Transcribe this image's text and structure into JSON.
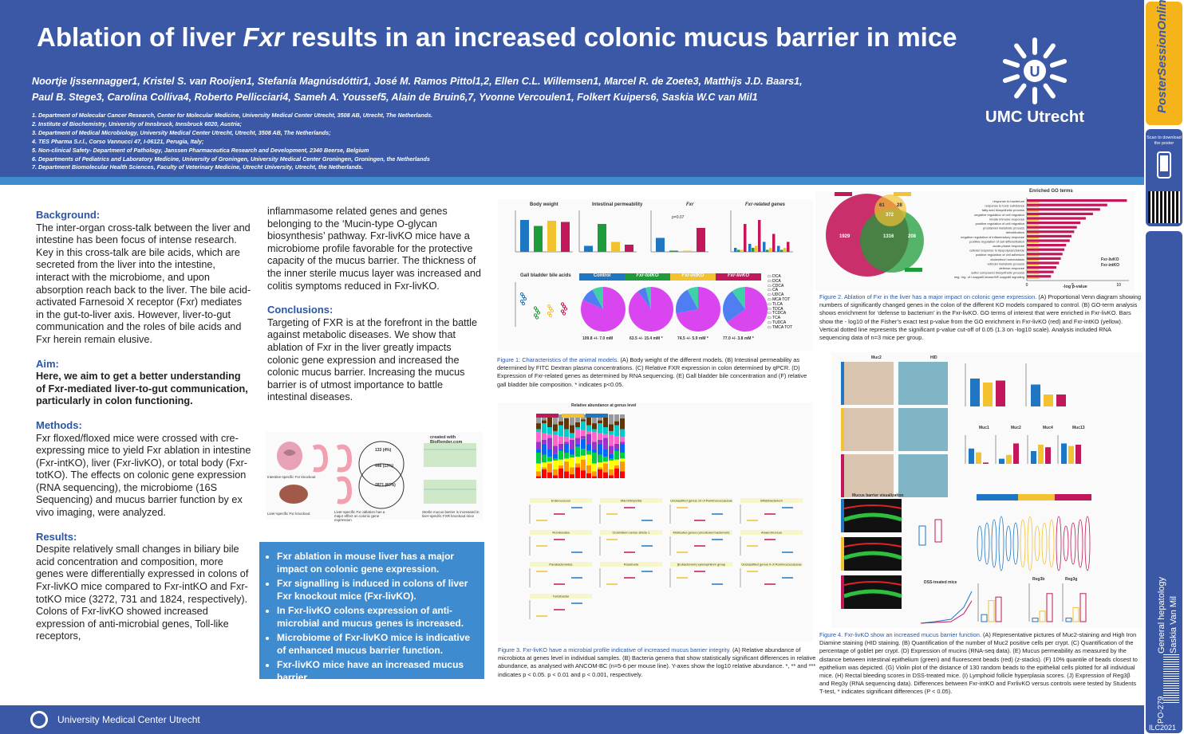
{
  "header": {
    "title_plain_1": "Ablation of liver ",
    "title_italic": "Fxr",
    "title_plain_2": " results in an increased colonic mucus barrier in mice",
    "authors_line1": "Noortje Ijssennagger1, Kristel S. van Rooijen1, Stefanía Magnúsdóttir1, José M. Ramos Pittol1,2, Ellen C.L. Willemsen1, Marcel R. de Zoete3, Matthijs J.D. Baars1,",
    "authors_line2": "Paul B. Stege3, Carolina Colliva4, Roberto Pellicciari4, Sameh A. Youssef5,  Alain de Bruin6,7, Yvonne Vercoulen1, Folkert Kuipers6, Saskia W.C van Mil1",
    "affiliations": [
      "1. Department of Molecular Cancer Research, Center for Molecular Medicine, University Medical Center Utrecht, 3508 AB, Utrecht, The Netherlands.",
      "2. Institute of Biochemistry, University of Innsbruck, Innsbruck 6020, Austria;",
      "3. Department of Medical Microbiology, University Medical Center Utrecht, Utrecht, 3508 AB, The Netherlands;",
      "4. TES Pharma S.r.l., Corso Vannucci 47, I-06121, Perugia, Italy;",
      "5. Non-clinical Safety- Department of Pathology, Janssen Pharmaceutica Research and Development,  2340 Beerse, Belgium",
      "6. Departments of Pediatrics and Laboratory Medicine, University of Groningen, University Medical Center Groningen, Groningen, the Netherlands",
      "7. Department Biomolecular Health Sciences, Faculty of Veterinary Medicine, Utrecht University, Utrecht, the Netherlands."
    ],
    "logo_text": "UMC Utrecht"
  },
  "sidebar": {
    "brand": "PosterSessionOnline",
    "scan_text": "Scan to download the poster",
    "topic": "General hepatology",
    "presenter": "Saskia Van Mil",
    "poster_id": "PO-279",
    "event": "ILC2021"
  },
  "background": {
    "heading": "Background:",
    "text": "The inter-organ cross-talk between the liver and intestine has been focus of intense research. Key in this cross-talk are bile acids, which are secreted from the liver into the intestine, interact with the microbiome, and upon absorption reach back to the liver. The bile acid-activated Farnesoid X receptor (Fxr) mediates in the gut-to-liver axis. However, liver-to-gut communication and the roles of bile acids and Fxr herein remain elusive."
  },
  "aim": {
    "heading": "Aim:",
    "text": "Here, we aim to get a better understanding of Fxr-mediated liver-to-gut communication, particularly in colon functioning."
  },
  "methods": {
    "heading": "Methods:",
    "text": "Fxr floxed/floxed mice were crossed with cre-expressing mice to yield Fxr ablation in intestine (Fxr-intKO), liver (Fxr-livKO), or total body (Fxr-totKO). The effects on colonic gene expression (RNA sequencing), the microbiome (16S Sequencing) and mucus barrier function by ex vivo imaging, were analyzed."
  },
  "results": {
    "heading": "Results:",
    "text": "Despite relatively small changes in biliary bile acid concentration and composition, more genes were differentially expressed in colons of Fxr-livKO mice compared to Fxr-intKO and Fxr-totKO mice (3272, 731 and 1824, respectively). Colons of Fxr-livKO showed increased expression of anti-microbial genes, Toll-like receptors,",
    "continued": "inflammasome related genes and genes belonging to the ‘Mucin-type O-glycan biosynthesis’ pathway. Fxr-livKO mice have a microbiome profile favorable for the protective capacity of the mucus barrier. The thickness of the inner sterile mucus layer was increased and colitis symptoms reduced in Fxr-livKO."
  },
  "conclusions": {
    "heading": "Conclusions:",
    "text": "Targeting of FXR is at the forefront in the battle against metabolic diseases. We show that ablation of Fxr in the liver greatly impacts colonic gene expression and increased the colonic mucus barrier. Increasing the mucus barrier is of utmost importance to battle intestinal diseases."
  },
  "highlights": [
    "Fxr ablation in mouse liver has a major impact on colonic gene expression.",
    "Fxr signalling is induced in colons of liver Fxr knockout mice (Fxr-livKO).",
    "In Fxr-livKO colons expression of anti-microbial and mucus genes is increased.",
    "Microbiome of Fxr-livKO mice is indicative of enhanced mucus barrier function.",
    "Fxr-livKO mice have an increased mucus barrier."
  ],
  "diagram": {
    "credit": "created with BioRender.com",
    "label_intestine": "Intestine-specific Fxr knockout",
    "label_liver": "Liver-specific Fxr knockout",
    "label_effect": "Liver-specific Fxr ablation has a major effect on colonic gene expression",
    "label_mucus": "Sterile mucus barrier is increased in liver-specific FXR knockout mice",
    "venn": [
      "133 (4%)",
      "446 (13%)",
      "2871 (83%)"
    ]
  },
  "fig1": {
    "caption_label": "Figure 1:",
    "caption_blue": " Characteristics of the animal models.",
    "caption_text": " (A) Body weight of the different models. (B) Intestinal permeability as determined by FITC Dextran plasma concentrations. (C) Relative FXR expression in colon determined by qPCR. (D) Expression of Fxr-related  genes as determined by RNA sequencing. (E) Gall bladder bile concentration and (F) relative gall  bladder bile composition. * indicates p<0.05.",
    "panel_titles": [
      "Body weight",
      "Intestinal permeability",
      "Fxr",
      "Fxr-related genes",
      "Gall bladder bile acids"
    ],
    "groups": [
      "Control",
      "Fxr-totKO",
      "Fxr-intKO",
      "Fxr-livKO"
    ],
    "pie_totals": [
      "109.8 +/- 7.0 mM",
      "63.5 +/- 15.4 mM *",
      "74.5 +/- 5.9 mM *",
      "77.0 +/- 3.8  mM *"
    ],
    "pvalue": "p=0.07",
    "bile_acids": [
      "DCA",
      "DCA",
      "CDCA",
      "CA",
      "UDCA",
      "MCA TOT",
      "TLCA",
      "TDCA",
      "TCDCA",
      "TCA",
      "TUDCA",
      "TMCA TOT"
    ]
  },
  "fig2": {
    "caption_label": "Figure 2.",
    "caption_blue": " Ablation of Fxr in the liver has a major impact on colonic gene expression.",
    "caption_text": " (A) Proportional Venn diagram showing numbers of significantly changed genes in the colon of the different KO models compared to control. (B) GO-term analysis shows enrichment for ‘defense to bacterium’ in the Fxr-livKO. GO terms of interest that were enriched in Fxr-livKO. Bars show the - log10 of the Fisher’s exact test p-value from the GO enrichment in Fxr-livKO (red) and Fxr-intKO (yellow). Vertical dotted line represents the significant p-value cut-off of 0.05 (1.3 on -log10 scale). Analysis included RNA sequencing data of n=3 mice per group.",
    "venn_values": [
      "1929",
      "1316",
      "208",
      "372",
      "61",
      "28"
    ],
    "go_title": "Enriched GO terms",
    "go_terms": [
      "response to bacterium",
      "response to toxic substance",
      "fatty acid biosynthetic process",
      "negative regulation of cell migration",
      "innate immune response",
      "positive regulation of cell migration",
      "prostanoid metabolic process",
      "detoxification",
      "negative regulation of inflammatory response",
      "positive regulation of cell differentiation",
      "acute-phase response",
      "cellular response to lipopolysaccharide",
      "positive regulation of cell adhesion",
      "cholesterol homeostasis",
      "retinoid metabolic process",
      "defense response",
      "sulfur compound biosynthetic process",
      "neg. reg. of I-kappaB kinase/NF-kappaB signaling"
    ],
    "go_values_liv": [
      11.2,
      9.0,
      8.2,
      7.4,
      6.6,
      6.0,
      5.6,
      5.3,
      5.0,
      4.8,
      4.4,
      4.2,
      4.0,
      3.8,
      3.6,
      3.3,
      3.0,
      2.7
    ],
    "go_xlabel": "-log p-value",
    "go_ticks": [
      "0",
      "5",
      "10"
    ],
    "legend": [
      "Fxr-livKO",
      "Fxr-intKO"
    ]
  },
  "fig3": {
    "caption_label": "Figure 3.",
    "caption_blue": " Fxr-livKO have a microbial profile indicative of increased mucus barrier integrity.",
    "caption_text": " (A) Relative abundance of microbiota at genes level in individual samples. (B) Bacteria genera that show statistically significant differences in relative abundance, as analysed with ANCOM-BC (n=5-6 per mouse line). Y-axes show the log10 relative abundance. *, ** and *** indicates p < 0.05. p < 0.01 and p < 0.001, respectively.",
    "title_A": "Relative abundance at genus level",
    "genera": [
      "Enterococcus",
      "Marvinbryantia",
      "Unclassified genus 10 of Ruminococcaceae",
      "Bifidobacterium",
      "Romboutsia",
      "Clostridium sensu stricto 1",
      "Mollicutes genus (uncultured bacterium)",
      "Anaerotruncus",
      "Parabacteroides",
      "Roseburia",
      "[Eubacterium] xylanophilum group",
      "Unclassified genus 9 of Ruminococcaceae",
      "Turicibacter"
    ]
  },
  "fig4": {
    "caption_label": "Figure 4.",
    "caption_blue": " Fxr-livKO show an increased mucus barrier function.",
    "caption_text": " (A) Representative pictures of Muc2-staining and High Iron Diamine staining (HID staining. (B) Quantification of the number of Muc2 positive cells per crypt. (C) Quantification of the percentage of goblet per crypt. (D) Expression of mucins (RNA-seq data). (E) Mucus permeability as measured by the distance between intestinal epithelium (green) and fluorescent beads (red) (z-stacks). (F) 10% quantile of beads closest to epithelium was depicted. (G) Violin plot of the distance of 130 random beads to the epithelial cells plotted for all individual mice. (H) Rectal bleeding scores in DSS-treated mice. (I) Lymphoid follicle hyperplasia scores. (J) Expression of Reg3β and Reg3γ (RNA sequencing data). Differences between Fxr-intKO and FxrlivKO versus controls were tested by Students T-test, * indicates significant differences (P < 0.05).",
    "panel_titles": [
      "Muc2",
      "HID",
      "Mucus barrier visualization",
      "DSS-treated mice",
      "Muc1",
      "Muc2",
      "Muc4",
      "Muc13",
      "Reg3b",
      "Reg3g"
    ]
  },
  "footer": {
    "text": "University Medical Center Utrecht"
  },
  "colors": {
    "brand": "#3a58a5",
    "accent": "#3e8bd0",
    "control": "#1f77c4",
    "totKO": "#1e9c3a",
    "intKO": "#f2c230",
    "livKO": "#c2185b"
  }
}
